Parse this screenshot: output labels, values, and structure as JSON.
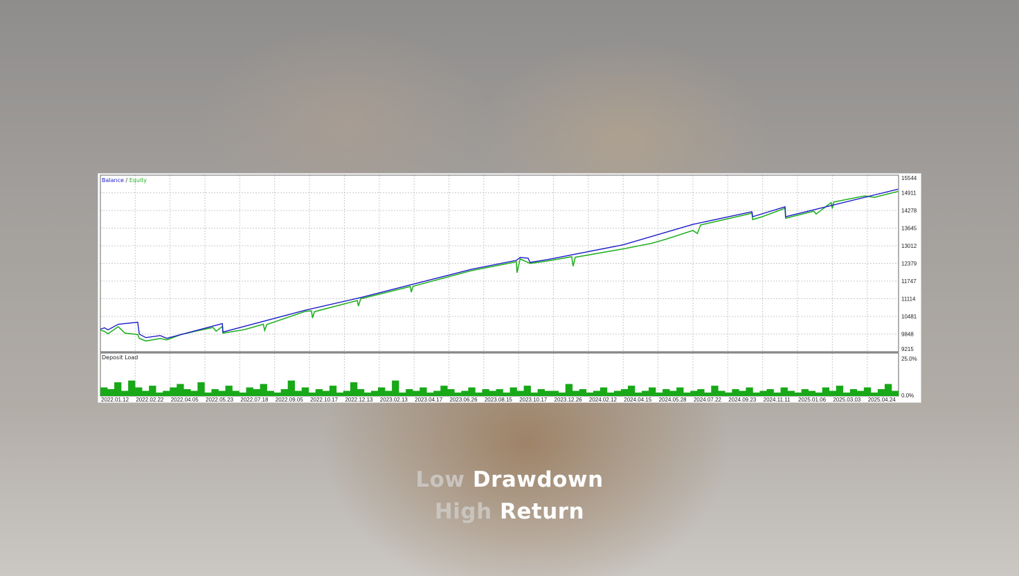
{
  "chart_data": [
    {
      "type": "line",
      "legend": {
        "balance": "Balance",
        "separator": " / ",
        "equity": "Equity",
        "placement": "top-left"
      },
      "colors": {
        "balance": "#1c1cc8",
        "equity": "#22b022",
        "grid": "#c8c8c8"
      },
      "grid": true,
      "ylim": [
        9215,
        15544
      ],
      "yticks": [
        "15544",
        "14911",
        "14278",
        "13645",
        "13012",
        "12379",
        "11747",
        "11114",
        "10481",
        "9848",
        "9215"
      ],
      "xticks": [
        "2022.01.12",
        "2022.02.22",
        "2022.04.05",
        "2022.05.23",
        "2022.07.18",
        "2022.09.05",
        "2022.10.17",
        "2022.12.13",
        "2023.02.13",
        "2023.04.17",
        "2023.06.26",
        "2023.08.15",
        "2023.10.17",
        "2023.12.26",
        "2024.02.12",
        "2024.04.15",
        "2024.05.28",
        "2024.07.22",
        "2024.09.23",
        "2024.11.11",
        "2025.01.06",
        "2025.03.03",
        "2025.04.24"
      ],
      "series": [
        {
          "name": "Balance",
          "points": [
            [
              "2022-01-12",
              10021
            ],
            [
              "2022-01-17",
              10071
            ],
            [
              "2022-01-21",
              9996
            ],
            [
              "2022-02-02",
              10197
            ],
            [
              "2022-02-25",
              10273
            ],
            [
              "2022-02-27",
              9844
            ],
            [
              "2022-03-07",
              9718
            ],
            [
              "2022-03-24",
              9794
            ],
            [
              "2022-04-01",
              9693
            ],
            [
              "2022-06-20",
              10223
            ],
            [
              "2022-06-21",
              9920
            ],
            [
              "2022-10-12",
              10702
            ],
            [
              "2023-01-11",
              11156
            ],
            [
              "2023-07-28",
              12165
            ],
            [
              "2023-10-13",
              12492
            ],
            [
              "2023-10-20",
              12593
            ],
            [
              "2023-11-05",
              12568
            ],
            [
              "2023-11-09",
              12417
            ],
            [
              "2023-12-14",
              12518
            ],
            [
              "2024-04-15",
              13047
            ],
            [
              "2024-07-22",
              13779
            ],
            [
              "2024-10-27",
              14233
            ],
            [
              "2024-10-28",
              14056
            ],
            [
              "2024-12-17",
              14409
            ],
            [
              "2024-12-18",
              14056
            ],
            [
              "2025-06-09",
              15040
            ]
          ]
        },
        {
          "name": "Equity",
          "points": [
            [
              "2022-01-12",
              9990
            ],
            [
              "2022-01-17",
              9940
            ],
            [
              "2022-01-21",
              9860
            ],
            [
              "2022-02-02",
              10110
            ],
            [
              "2022-02-10",
              9880
            ],
            [
              "2022-02-25",
              9830
            ],
            [
              "2022-02-27",
              9690
            ],
            [
              "2022-03-07",
              9600
            ],
            [
              "2022-03-24",
              9690
            ],
            [
              "2022-04-01",
              9640
            ],
            [
              "2022-04-20",
              9830
            ],
            [
              "2022-05-15",
              9980
            ],
            [
              "2022-06-05",
              10080
            ],
            [
              "2022-06-10",
              9950
            ],
            [
              "2022-06-20",
              10120
            ],
            [
              "2022-06-21",
              9880
            ],
            [
              "2022-07-25",
              10010
            ],
            [
              "2022-08-20",
              10200
            ],
            [
              "2022-08-22",
              9980
            ],
            [
              "2022-08-25",
              10190
            ],
            [
              "2022-10-12",
              10660
            ],
            [
              "2022-10-20",
              10680
            ],
            [
              "2022-10-22",
              10420
            ],
            [
              "2022-10-25",
              10650
            ],
            [
              "2023-01-05",
              11050
            ],
            [
              "2023-01-07",
              10850
            ],
            [
              "2023-01-11",
              11110
            ],
            [
              "2023-04-10",
              11550
            ],
            [
              "2023-04-12",
              11350
            ],
            [
              "2023-04-15",
              11560
            ],
            [
              "2023-07-28",
              12120
            ],
            [
              "2023-10-13",
              12440
            ],
            [
              "2023-10-14",
              12050
            ],
            [
              "2023-10-20",
              12540
            ],
            [
              "2023-11-09",
              12380
            ],
            [
              "2023-12-14",
              12470
            ],
            [
              "2024-01-20",
              12620
            ],
            [
              "2024-01-22",
              12280
            ],
            [
              "2024-01-25",
              12600
            ],
            [
              "2024-04-15",
              12900
            ],
            [
              "2024-05-20",
              13100
            ],
            [
              "2024-06-10",
              13250
            ],
            [
              "2024-07-22",
              13560
            ],
            [
              "2024-07-30",
              13450
            ],
            [
              "2024-08-05",
              13760
            ],
            [
              "2024-10-27",
              14180
            ],
            [
              "2024-10-28",
              13950
            ],
            [
              "2024-11-10",
              14050
            ],
            [
              "2024-12-17",
              14360
            ],
            [
              "2024-12-18",
              14000
            ],
            [
              "2025-02-01",
              14250
            ],
            [
              "2025-02-05",
              14150
            ],
            [
              "2025-03-01",
              14560
            ],
            [
              "2025-03-03",
              14350
            ],
            [
              "2025-03-05",
              14580
            ],
            [
              "2025-04-20",
              14800
            ],
            [
              "2025-05-05",
              14750
            ],
            [
              "2025-06-09",
              14960
            ]
          ]
        }
      ]
    },
    {
      "type": "bar",
      "title": "Deposit Load",
      "color": "#18a818",
      "ylim": [
        0,
        25
      ],
      "yticks": [
        "25.0%",
        "0.0%"
      ],
      "values": [
        5,
        4,
        8,
        3,
        9,
        5,
        3,
        6,
        2,
        3,
        5,
        7,
        4,
        3,
        8,
        2,
        4,
        3,
        6,
        3,
        2,
        5,
        4,
        7,
        3,
        2,
        4,
        9,
        3,
        5,
        2,
        4,
        3,
        6,
        2,
        3,
        8,
        4,
        2,
        3,
        5,
        3,
        9,
        2,
        4,
        3,
        5,
        2,
        3,
        6,
        4,
        2,
        3,
        5,
        2,
        4,
        3,
        4,
        2,
        5,
        3,
        6,
        2,
        4,
        3,
        3,
        2,
        7,
        3,
        4,
        2,
        3,
        5,
        2,
        3,
        4,
        6,
        2,
        3,
        5,
        2,
        4,
        3,
        5,
        2,
        3,
        4,
        2,
        6,
        3,
        2,
        4,
        3,
        5,
        2,
        3,
        4,
        2,
        5,
        3,
        2,
        4,
        3,
        2,
        5,
        3,
        6,
        2,
        4,
        3,
        5,
        2,
        4,
        7,
        3
      ]
    }
  ],
  "headline": {
    "line1": {
      "dim": "Low",
      "bright": "Drawdown"
    },
    "line2": {
      "dim": "High",
      "bright": "Return"
    }
  }
}
